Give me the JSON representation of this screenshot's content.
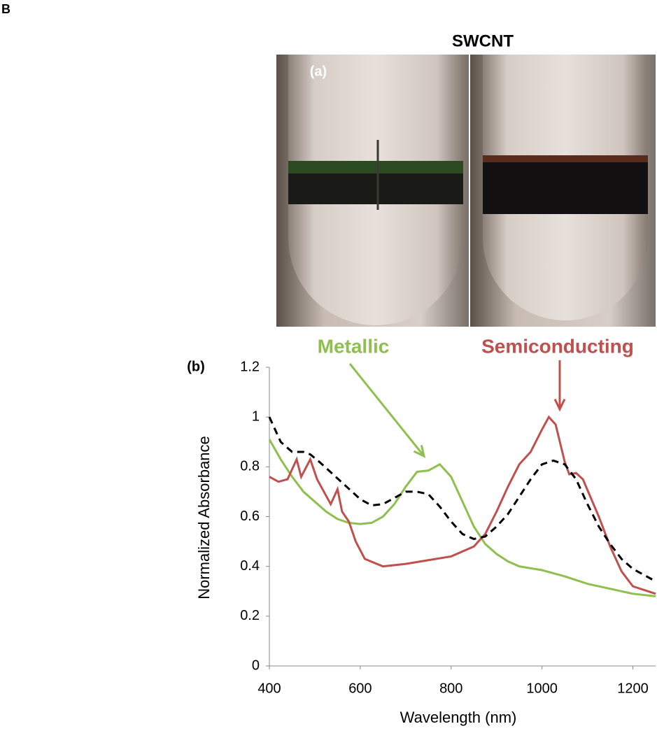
{
  "panel_label": "B",
  "photo": {
    "title": "SWCNT",
    "label": "(a)"
  },
  "chart_data": {
    "type": "line",
    "label": "(b)",
    "x_label": "Wavelength (nm)",
    "y_label": "Normalized Absorbance",
    "xlim": [
      400,
      1250
    ],
    "xticks": [
      400,
      600,
      800,
      1000,
      1200
    ],
    "ylim": [
      0,
      1.2
    ],
    "yticks": [
      0,
      0.2,
      0.4,
      0.6,
      0.8,
      1,
      1.2
    ],
    "series": [
      {
        "name": "Metallic",
        "color": "#8fbf4f",
        "dashed": false,
        "x": [
          400,
          425,
          450,
          475,
          500,
          525,
          550,
          575,
          600,
          625,
          650,
          675,
          700,
          725,
          750,
          775,
          800,
          825,
          850,
          875,
          900,
          925,
          950,
          1000,
          1050,
          1100,
          1150,
          1200,
          1250
        ],
        "values": [
          0.91,
          0.83,
          0.76,
          0.7,
          0.66,
          0.62,
          0.59,
          0.575,
          0.57,
          0.575,
          0.6,
          0.65,
          0.72,
          0.78,
          0.785,
          0.81,
          0.76,
          0.66,
          0.56,
          0.49,
          0.45,
          0.42,
          0.4,
          0.385,
          0.36,
          0.33,
          0.31,
          0.29,
          0.28
        ]
      },
      {
        "name": "Semiconducting",
        "color": "#c0504d",
        "dashed": false,
        "x": [
          400,
          420,
          440,
          460,
          470,
          490,
          505,
          520,
          535,
          550,
          560,
          575,
          590,
          610,
          650,
          700,
          750,
          800,
          850,
          875,
          900,
          925,
          950,
          975,
          1000,
          1015,
          1030,
          1050,
          1060,
          1075,
          1090,
          1125,
          1150,
          1175,
          1200,
          1250
        ],
        "values": [
          0.76,
          0.74,
          0.75,
          0.83,
          0.76,
          0.83,
          0.75,
          0.7,
          0.65,
          0.71,
          0.62,
          0.58,
          0.5,
          0.43,
          0.4,
          0.41,
          0.425,
          0.44,
          0.48,
          0.53,
          0.62,
          0.72,
          0.81,
          0.86,
          0.95,
          1.0,
          0.97,
          0.82,
          0.77,
          0.775,
          0.75,
          0.6,
          0.48,
          0.38,
          0.32,
          0.29
        ]
      },
      {
        "color": "#000000",
        "dashed": true,
        "x": [
          400,
          425,
          450,
          475,
          490,
          510,
          540,
          570,
          600,
          625,
          650,
          675,
          700,
          725,
          750,
          775,
          800,
          825,
          850,
          875,
          900,
          925,
          950,
          975,
          1000,
          1025,
          1050,
          1075,
          1100,
          1125,
          1150,
          1175,
          1200,
          1250
        ],
        "values": [
          1.0,
          0.9,
          0.86,
          0.86,
          0.85,
          0.82,
          0.77,
          0.72,
          0.67,
          0.645,
          0.65,
          0.675,
          0.7,
          0.7,
          0.69,
          0.64,
          0.58,
          0.53,
          0.51,
          0.52,
          0.56,
          0.61,
          0.68,
          0.75,
          0.81,
          0.825,
          0.81,
          0.75,
          0.65,
          0.56,
          0.49,
          0.43,
          0.39,
          0.34
        ]
      }
    ]
  }
}
